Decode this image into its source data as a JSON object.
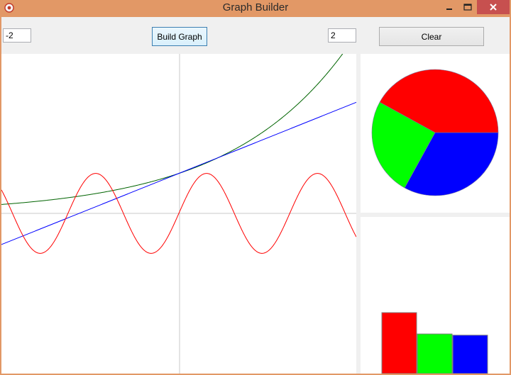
{
  "window": {
    "title": "Graph Builder"
  },
  "toolbar": {
    "min_value": "-2",
    "build_label": "Build Graph",
    "max_value": "2",
    "clear_label": "Clear"
  },
  "icons": {
    "app": "app-icon",
    "minimize": "minimize-icon",
    "maximize": "maximize-icon",
    "close": "close-icon"
  },
  "colors": {
    "titlebar": "#e29866",
    "close_button": "#c7504f",
    "sine": "#ff0000",
    "linear": "#0000ff",
    "exponential": "#006400",
    "axes": "#c8c8c8"
  },
  "chart_data": [
    {
      "type": "line",
      "xlim": [
        -2,
        2
      ],
      "ylim": [
        -3,
        3
      ],
      "series": [
        {
          "function": "sin",
          "color": "#ff0000",
          "formula": "sin(x*pi*1.6)"
        },
        {
          "function": "linear",
          "color": "#0000ff",
          "formula": "1+0.89x"
        },
        {
          "function": "exponential",
          "color": "#006400",
          "formula": "e^(0.75x)"
        }
      ]
    },
    {
      "type": "pie",
      "values": [
        42,
        25,
        33
      ],
      "colors": [
        "#ff0000",
        "#00ff00",
        "#0000ff"
      ]
    },
    {
      "type": "bar",
      "values": [
        1.0,
        0.65,
        0.63
      ],
      "colors": [
        "#ff0000",
        "#00ff00",
        "#0000ff"
      ]
    }
  ]
}
